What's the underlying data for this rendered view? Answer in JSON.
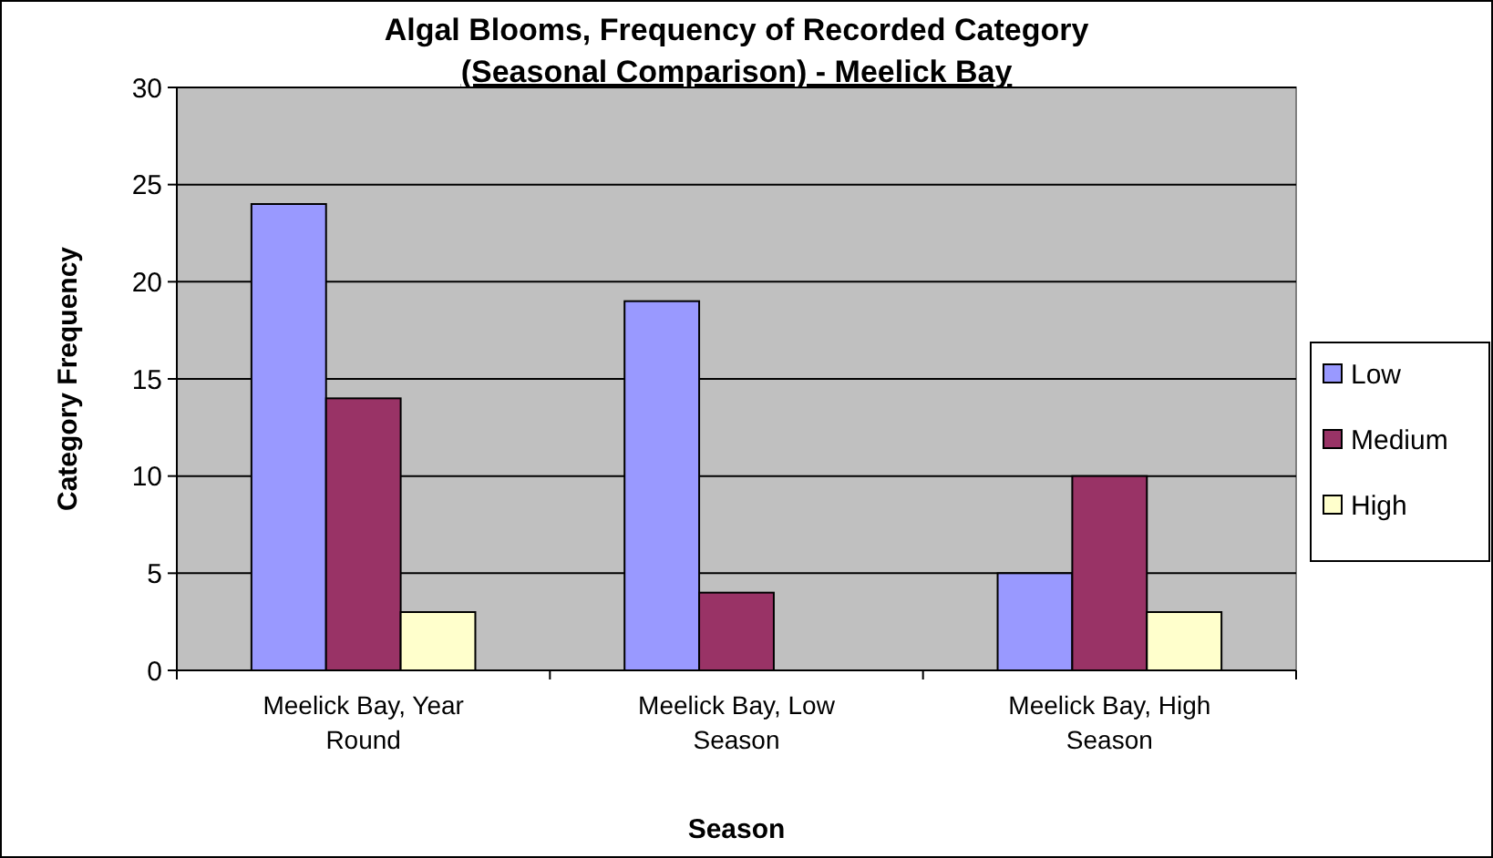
{
  "chart_data": {
    "type": "bar",
    "title": "Algal Blooms, Frequency of Recorded Category\n(Seasonal Comparison) - Meelick Bay",
    "xlabel": "Season",
    "ylabel": "Category Frequency",
    "categories": [
      "Meelick Bay, Year Round",
      "Meelick Bay, Low Season",
      "Meelick Bay, High Season"
    ],
    "series": [
      {
        "name": "Low",
        "color": "#9999ff",
        "values": [
          24,
          19,
          5
        ]
      },
      {
        "name": "Medium",
        "color": "#993366",
        "values": [
          14,
          4,
          10
        ]
      },
      {
        "name": "High",
        "color": "#ffffcc",
        "values": [
          3,
          0,
          3
        ]
      }
    ],
    "ylim": [
      0,
      30
    ],
    "yticks": [
      0,
      5,
      10,
      15,
      20,
      25,
      30
    ],
    "grid": "y",
    "legend": "right"
  }
}
